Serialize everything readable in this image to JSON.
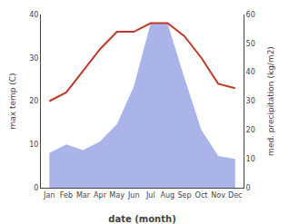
{
  "chart_data": {
    "type": "line",
    "categories": [
      "Jan",
      "Feb",
      "Mar",
      "Apr",
      "May",
      "Jun",
      "Jul",
      "Aug",
      "Sep",
      "Oct",
      "Nov",
      "Dec"
    ],
    "xlabel": "date (month)",
    "ylabel": "max temp (C)",
    "y2label": "med. precipitation (kg/m2)",
    "series": [
      {
        "type": "area",
        "axis": "y2",
        "color": "#aab4e8",
        "values": [
          12,
          15,
          13,
          16,
          22,
          35,
          57,
          57,
          38,
          20,
          11,
          10
        ]
      },
      {
        "type": "line",
        "color": "#c0392b",
        "values": [
          20,
          22,
          27,
          32,
          36,
          36,
          38,
          38,
          35,
          30,
          24,
          23
        ]
      }
    ],
    "ylim": [
      0,
      40
    ],
    "yticks": [
      0,
      10,
      20,
      30,
      40
    ],
    "y2lim": [
      0,
      60
    ],
    "y2ticks": [
      0,
      10,
      20,
      30,
      40,
      50,
      60
    ],
    "grid": false
  }
}
